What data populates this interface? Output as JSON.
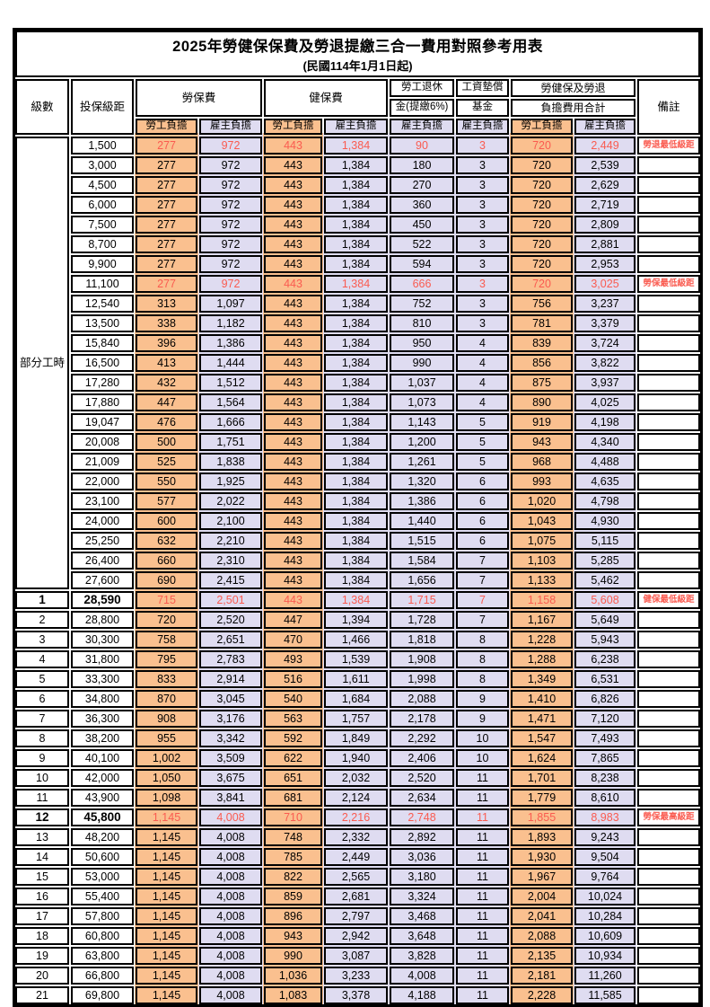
{
  "title": "2025年勞健保保費及勞退提繳三合一費用對照參考用表",
  "subtitle": "(民國114年1月1日起)",
  "colors": {
    "employee_column_bg": "#FAC08F",
    "employer_column_bg": "#DFDCF1",
    "highlight_text": "#FA5B50",
    "border": "#000000"
  },
  "header": {
    "level": "級數",
    "bracket": "投保級距",
    "labor_insurance": "勞保費",
    "health_insurance": "健保費",
    "pension_line1": "勞工退休",
    "pension_line2": "金(提繳6%)",
    "wage_fund_line1": "工資墊償",
    "wage_fund_line2": "基金",
    "total_line1": "勞健保及勞退",
    "total_line2": "負擔費用合計",
    "remark": "備註",
    "employee_share": "勞工負擔",
    "employer_share": "雇主負擔"
  },
  "part_time_label": "部分工時",
  "rows": [
    {
      "level": "",
      "bracket": "1,500",
      "v": [
        "277",
        "972",
        "443",
        "1,384",
        "90",
        "3",
        "720",
        "2,449"
      ],
      "remark": "勞退最低級距",
      "red": true,
      "bold": false
    },
    {
      "level": "",
      "bracket": "3,000",
      "v": [
        "277",
        "972",
        "443",
        "1,384",
        "180",
        "3",
        "720",
        "2,539"
      ],
      "remark": "",
      "red": false,
      "bold": false
    },
    {
      "level": "",
      "bracket": "4,500",
      "v": [
        "277",
        "972",
        "443",
        "1,384",
        "270",
        "3",
        "720",
        "2,629"
      ],
      "remark": "",
      "red": false,
      "bold": false
    },
    {
      "level": "",
      "bracket": "6,000",
      "v": [
        "277",
        "972",
        "443",
        "1,384",
        "360",
        "3",
        "720",
        "2,719"
      ],
      "remark": "",
      "red": false,
      "bold": false
    },
    {
      "level": "",
      "bracket": "7,500",
      "v": [
        "277",
        "972",
        "443",
        "1,384",
        "450",
        "3",
        "720",
        "2,809"
      ],
      "remark": "",
      "red": false,
      "bold": false
    },
    {
      "level": "",
      "bracket": "8,700",
      "v": [
        "277",
        "972",
        "443",
        "1,384",
        "522",
        "3",
        "720",
        "2,881"
      ],
      "remark": "",
      "red": false,
      "bold": false
    },
    {
      "level": "",
      "bracket": "9,900",
      "v": [
        "277",
        "972",
        "443",
        "1,384",
        "594",
        "3",
        "720",
        "2,953"
      ],
      "remark": "",
      "red": false,
      "bold": false
    },
    {
      "level": "",
      "bracket": "11,100",
      "v": [
        "277",
        "972",
        "443",
        "1,384",
        "666",
        "3",
        "720",
        "3,025"
      ],
      "remark": "勞保最低級距",
      "red": true,
      "bold": false
    },
    {
      "level": "",
      "bracket": "12,540",
      "v": [
        "313",
        "1,097",
        "443",
        "1,384",
        "752",
        "3",
        "756",
        "3,237"
      ],
      "remark": "",
      "red": false,
      "bold": false
    },
    {
      "level": "",
      "bracket": "13,500",
      "v": [
        "338",
        "1,182",
        "443",
        "1,384",
        "810",
        "3",
        "781",
        "3,379"
      ],
      "remark": "",
      "red": false,
      "bold": false
    },
    {
      "level": "",
      "bracket": "15,840",
      "v": [
        "396",
        "1,386",
        "443",
        "1,384",
        "950",
        "4",
        "839",
        "3,724"
      ],
      "remark": "",
      "red": false,
      "bold": false
    },
    {
      "level": "",
      "bracket": "16,500",
      "v": [
        "413",
        "1,444",
        "443",
        "1,384",
        "990",
        "4",
        "856",
        "3,822"
      ],
      "remark": "",
      "red": false,
      "bold": false
    },
    {
      "level": "",
      "bracket": "17,280",
      "v": [
        "432",
        "1,512",
        "443",
        "1,384",
        "1,037",
        "4",
        "875",
        "3,937"
      ],
      "remark": "",
      "red": false,
      "bold": false
    },
    {
      "level": "",
      "bracket": "17,880",
      "v": [
        "447",
        "1,564",
        "443",
        "1,384",
        "1,073",
        "4",
        "890",
        "4,025"
      ],
      "remark": "",
      "red": false,
      "bold": false
    },
    {
      "level": "",
      "bracket": "19,047",
      "v": [
        "476",
        "1,666",
        "443",
        "1,384",
        "1,143",
        "5",
        "919",
        "4,198"
      ],
      "remark": "",
      "red": false,
      "bold": false
    },
    {
      "level": "",
      "bracket": "20,008",
      "v": [
        "500",
        "1,751",
        "443",
        "1,384",
        "1,200",
        "5",
        "943",
        "4,340"
      ],
      "remark": "",
      "red": false,
      "bold": false
    },
    {
      "level": "",
      "bracket": "21,009",
      "v": [
        "525",
        "1,838",
        "443",
        "1,384",
        "1,261",
        "5",
        "968",
        "4,488"
      ],
      "remark": "",
      "red": false,
      "bold": false
    },
    {
      "level": "",
      "bracket": "22,000",
      "v": [
        "550",
        "1,925",
        "443",
        "1,384",
        "1,320",
        "6",
        "993",
        "4,635"
      ],
      "remark": "",
      "red": false,
      "bold": false
    },
    {
      "level": "",
      "bracket": "23,100",
      "v": [
        "577",
        "2,022",
        "443",
        "1,384",
        "1,386",
        "6",
        "1,020",
        "4,798"
      ],
      "remark": "",
      "red": false,
      "bold": false
    },
    {
      "level": "",
      "bracket": "24,000",
      "v": [
        "600",
        "2,100",
        "443",
        "1,384",
        "1,440",
        "6",
        "1,043",
        "4,930"
      ],
      "remark": "",
      "red": false,
      "bold": false
    },
    {
      "level": "",
      "bracket": "25,250",
      "v": [
        "632",
        "2,210",
        "443",
        "1,384",
        "1,515",
        "6",
        "1,075",
        "5,115"
      ],
      "remark": "",
      "red": false,
      "bold": false
    },
    {
      "level": "",
      "bracket": "26,400",
      "v": [
        "660",
        "2,310",
        "443",
        "1,384",
        "1,584",
        "7",
        "1,103",
        "5,285"
      ],
      "remark": "",
      "red": false,
      "bold": false
    },
    {
      "level": "",
      "bracket": "27,600",
      "v": [
        "690",
        "2,415",
        "443",
        "1,384",
        "1,656",
        "7",
        "1,133",
        "5,462"
      ],
      "remark": "",
      "red": false,
      "bold": false
    },
    {
      "level": "1",
      "bracket": "28,590",
      "v": [
        "715",
        "2,501",
        "443",
        "1,384",
        "1,715",
        "7",
        "1,158",
        "5,608"
      ],
      "remark": "健保最低級距",
      "red": true,
      "bold": true
    },
    {
      "level": "2",
      "bracket": "28,800",
      "v": [
        "720",
        "2,520",
        "447",
        "1,394",
        "1,728",
        "7",
        "1,167",
        "5,649"
      ],
      "remark": "",
      "red": false,
      "bold": false
    },
    {
      "level": "3",
      "bracket": "30,300",
      "v": [
        "758",
        "2,651",
        "470",
        "1,466",
        "1,818",
        "8",
        "1,228",
        "5,943"
      ],
      "remark": "",
      "red": false,
      "bold": false
    },
    {
      "level": "4",
      "bracket": "31,800",
      "v": [
        "795",
        "2,783",
        "493",
        "1,539",
        "1,908",
        "8",
        "1,288",
        "6,238"
      ],
      "remark": "",
      "red": false,
      "bold": false
    },
    {
      "level": "5",
      "bracket": "33,300",
      "v": [
        "833",
        "2,914",
        "516",
        "1,611",
        "1,998",
        "8",
        "1,349",
        "6,531"
      ],
      "remark": "",
      "red": false,
      "bold": false
    },
    {
      "level": "6",
      "bracket": "34,800",
      "v": [
        "870",
        "3,045",
        "540",
        "1,684",
        "2,088",
        "9",
        "1,410",
        "6,826"
      ],
      "remark": "",
      "red": false,
      "bold": false
    },
    {
      "level": "7",
      "bracket": "36,300",
      "v": [
        "908",
        "3,176",
        "563",
        "1,757",
        "2,178",
        "9",
        "1,471",
        "7,120"
      ],
      "remark": "",
      "red": false,
      "bold": false
    },
    {
      "level": "8",
      "bracket": "38,200",
      "v": [
        "955",
        "3,342",
        "592",
        "1,849",
        "2,292",
        "10",
        "1,547",
        "7,493"
      ],
      "remark": "",
      "red": false,
      "bold": false
    },
    {
      "level": "9",
      "bracket": "40,100",
      "v": [
        "1,002",
        "3,509",
        "622",
        "1,940",
        "2,406",
        "10",
        "1,624",
        "7,865"
      ],
      "remark": "",
      "red": false,
      "bold": false
    },
    {
      "level": "10",
      "bracket": "42,000",
      "v": [
        "1,050",
        "3,675",
        "651",
        "2,032",
        "2,520",
        "11",
        "1,701",
        "8,238"
      ],
      "remark": "",
      "red": false,
      "bold": false
    },
    {
      "level": "11",
      "bracket": "43,900",
      "v": [
        "1,098",
        "3,841",
        "681",
        "2,124",
        "2,634",
        "11",
        "1,779",
        "8,610"
      ],
      "remark": "",
      "red": false,
      "bold": false
    },
    {
      "level": "12",
      "bracket": "45,800",
      "v": [
        "1,145",
        "4,008",
        "710",
        "2,216",
        "2,748",
        "11",
        "1,855",
        "8,983"
      ],
      "remark": "勞保最高級距",
      "red": true,
      "bold": true
    },
    {
      "level": "13",
      "bracket": "48,200",
      "v": [
        "1,145",
        "4,008",
        "748",
        "2,332",
        "2,892",
        "11",
        "1,893",
        "9,243"
      ],
      "remark": "",
      "red": false,
      "bold": false
    },
    {
      "level": "14",
      "bracket": "50,600",
      "v": [
        "1,145",
        "4,008",
        "785",
        "2,449",
        "3,036",
        "11",
        "1,930",
        "9,504"
      ],
      "remark": "",
      "red": false,
      "bold": false
    },
    {
      "level": "15",
      "bracket": "53,000",
      "v": [
        "1,145",
        "4,008",
        "822",
        "2,565",
        "3,180",
        "11",
        "1,967",
        "9,764"
      ],
      "remark": "",
      "red": false,
      "bold": false
    },
    {
      "level": "16",
      "bracket": "55,400",
      "v": [
        "1,145",
        "4,008",
        "859",
        "2,681",
        "3,324",
        "11",
        "2,004",
        "10,024"
      ],
      "remark": "",
      "red": false,
      "bold": false
    },
    {
      "level": "17",
      "bracket": "57,800",
      "v": [
        "1,145",
        "4,008",
        "896",
        "2,797",
        "3,468",
        "11",
        "2,041",
        "10,284"
      ],
      "remark": "",
      "red": false,
      "bold": false
    },
    {
      "level": "18",
      "bracket": "60,800",
      "v": [
        "1,145",
        "4,008",
        "943",
        "2,942",
        "3,648",
        "11",
        "2,088",
        "10,609"
      ],
      "remark": "",
      "red": false,
      "bold": false
    },
    {
      "level": "19",
      "bracket": "63,800",
      "v": [
        "1,145",
        "4,008",
        "990",
        "3,087",
        "3,828",
        "11",
        "2,135",
        "10,934"
      ],
      "remark": "",
      "red": false,
      "bold": false
    },
    {
      "level": "20",
      "bracket": "66,800",
      "v": [
        "1,145",
        "4,008",
        "1,036",
        "3,233",
        "4,008",
        "11",
        "2,181",
        "11,260"
      ],
      "remark": "",
      "red": false,
      "bold": false
    },
    {
      "level": "21",
      "bracket": "69,800",
      "v": [
        "1,145",
        "4,008",
        "1,083",
        "3,378",
        "4,188",
        "11",
        "2,228",
        "11,585"
      ],
      "remark": "",
      "red": false,
      "bold": false
    }
  ]
}
